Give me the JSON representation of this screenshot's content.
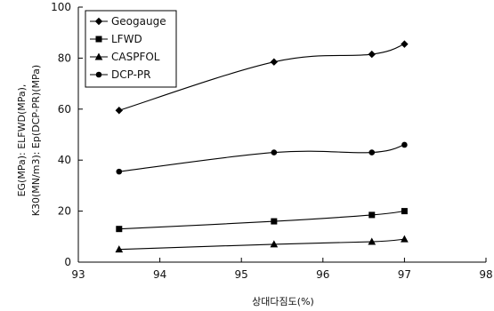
{
  "chart_data": {
    "type": "line",
    "title": "",
    "xlabel": "상대다짐도(%)",
    "ylabel_line1": "K30(MN/m3): Ep(DCP-PR)(MPa)",
    "ylabel_line2": "EG(MPa): ELFWD(MPa),",
    "xlim": [
      93,
      98
    ],
    "ylim": [
      0,
      100
    ],
    "x_ticks": [
      93,
      94,
      95,
      96,
      97,
      98
    ],
    "y_ticks": [
      0,
      20,
      40,
      60,
      80,
      100
    ],
    "grid": false,
    "legend_position": "top-left",
    "series": [
      {
        "name": "Geogauge",
        "marker": "diamond",
        "x": [
          93.5,
          95.4,
          96.6,
          97.0
        ],
        "values": [
          59.5,
          78.5,
          81.5,
          85.5
        ]
      },
      {
        "name": "LFWD",
        "marker": "square",
        "x": [
          93.5,
          95.4,
          96.6,
          97.0
        ],
        "values": [
          13,
          16,
          18.5,
          20
        ]
      },
      {
        "name": "CASPFOL",
        "marker": "triangle",
        "x": [
          93.5,
          95.4,
          96.6,
          97.0
        ],
        "values": [
          5,
          7,
          8,
          9
        ]
      },
      {
        "name": "DCP-PR",
        "marker": "circle",
        "x": [
          93.5,
          95.4,
          96.6,
          97.0
        ],
        "values": [
          35.5,
          43,
          43,
          46
        ]
      }
    ]
  }
}
